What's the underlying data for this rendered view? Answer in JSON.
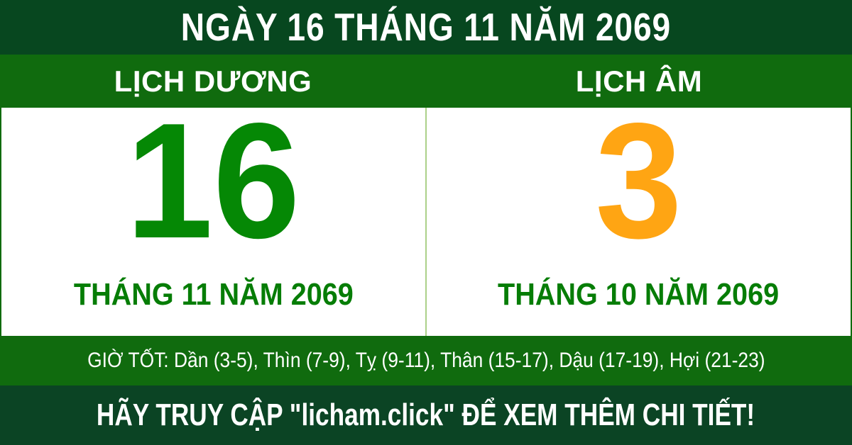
{
  "colors": {
    "header_bg": "#07471f",
    "bar_bg": "#106b0e",
    "panel_bg": "#ffffff",
    "divider": "#abd089",
    "solar_number": "#058805",
    "lunar_number": "#ffa513",
    "month_text": "#067d06",
    "footer_bg": "#0b4424",
    "text_light": "#ffffff"
  },
  "header": {
    "title": "NGÀY 16 THÁNG 11 NĂM 2069"
  },
  "calendars": {
    "solar": {
      "label": "LỊCH DƯƠNG",
      "day": "16",
      "month_year": "THÁNG 11 NĂM 2069"
    },
    "lunar": {
      "label": "LỊCH ÂM",
      "day": "3",
      "month_year": "THÁNG 10 NĂM 2069"
    }
  },
  "good_hours": {
    "text": "GIỜ TỐT: Dần (3-5), Thìn (7-9), Tỵ (9-11), Thân (15-17), Dậu (17-19), Hợi (21-23)"
  },
  "footer": {
    "text": "HÃY TRUY CẬP \"licham.click\" ĐỂ XEM THÊM CHI TIẾT!"
  }
}
